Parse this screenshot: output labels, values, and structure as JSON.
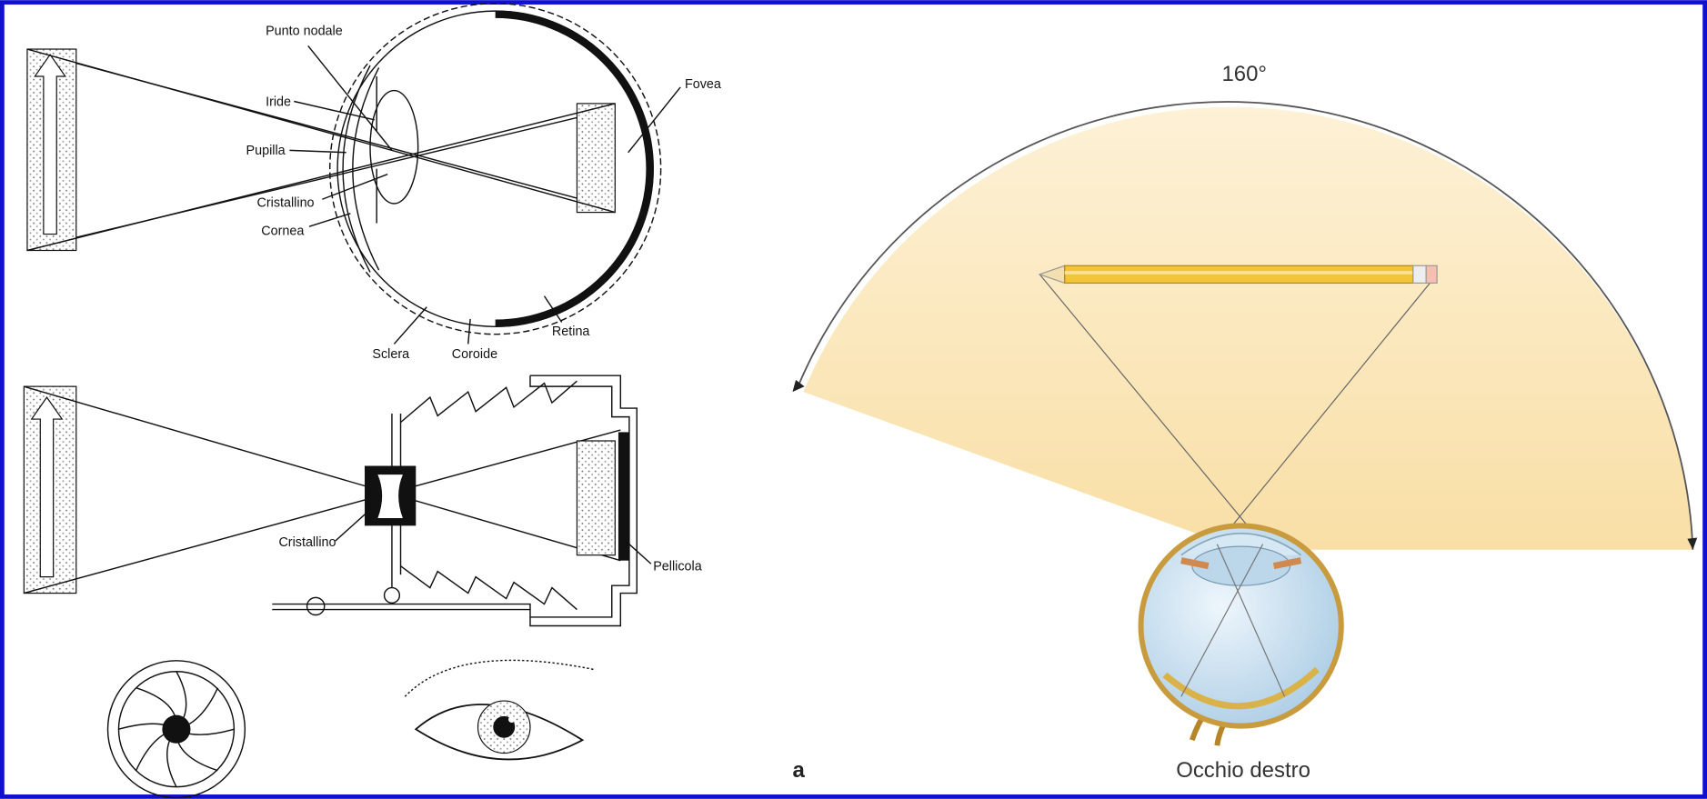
{
  "left": {
    "eye_labels": [
      "Punto nodale",
      "Iride",
      "Pupilla",
      "Cristallino",
      "Cornea",
      "Sclera",
      "Coroide",
      "Retina",
      "Fovea"
    ],
    "camera_labels": [
      "Cristallino",
      "Pellicola"
    ]
  },
  "right": {
    "angle": "160°",
    "panel_letter": "a",
    "caption": "Occhio destro"
  }
}
